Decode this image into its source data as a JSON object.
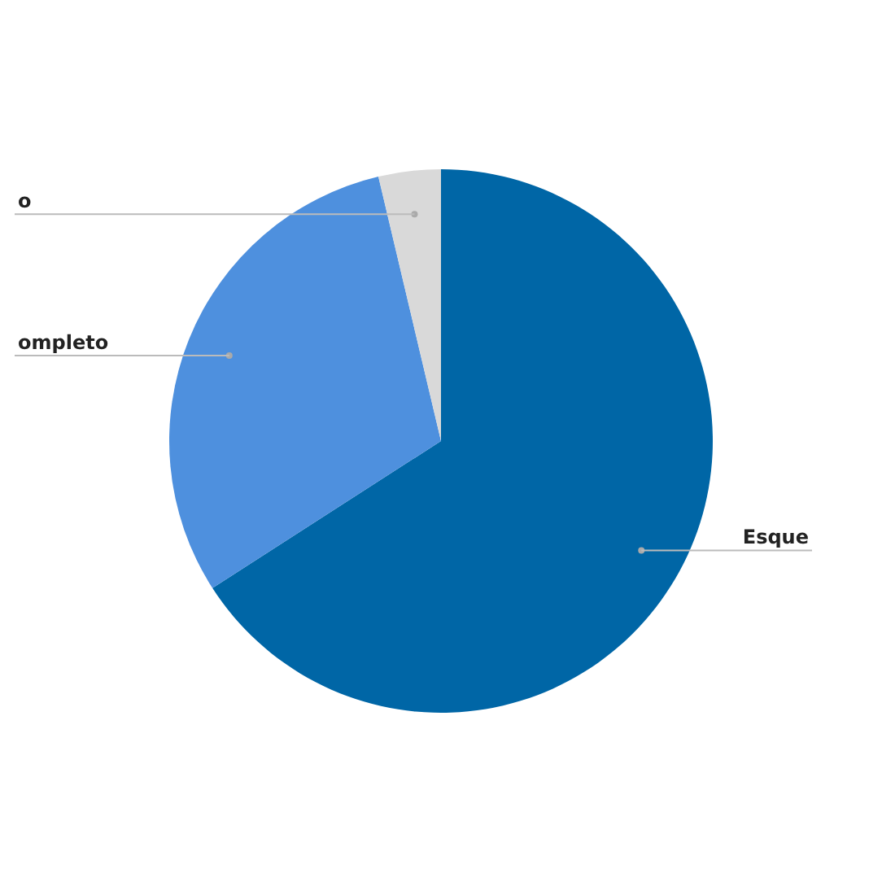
{
  "chart_data": {
    "type": "pie",
    "categories": [
      "Esque",
      "ompleto",
      "o"
    ],
    "values": [
      65.9,
      30.4,
      3.7
    ],
    "colors": [
      "#0066a6",
      "#4e90de",
      "#d9d9d9"
    ],
    "legend": false
  }
}
